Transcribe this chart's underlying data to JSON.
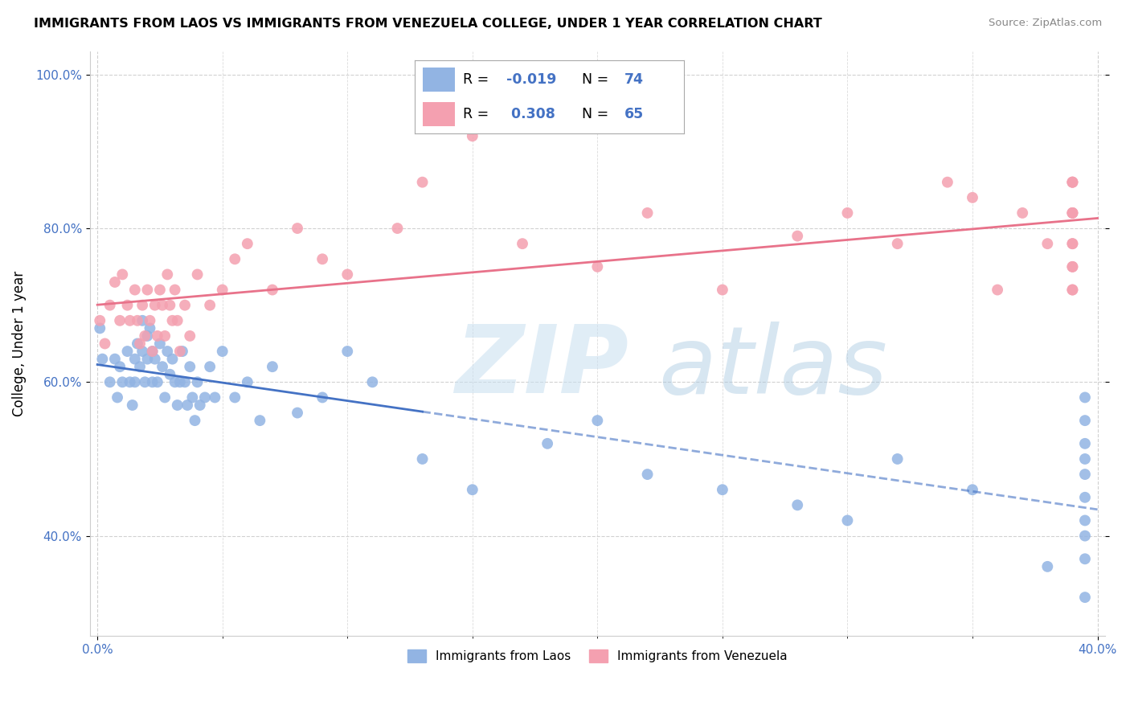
{
  "title": "IMMIGRANTS FROM LAOS VS IMMIGRANTS FROM VENEZUELA COLLEGE, UNDER 1 YEAR CORRELATION CHART",
  "source": "Source: ZipAtlas.com",
  "ylabel": "College, Under 1 year",
  "xlim": [
    -0.003,
    0.403
  ],
  "ylim": [
    0.27,
    1.03
  ],
  "color_laos": "#92b4e3",
  "color_venezuela": "#f4a0b0",
  "color_laos_line": "#4472c4",
  "color_venezuela_line": "#e8728a",
  "R_laos": -0.019,
  "N_laos": 74,
  "R_venezuela": 0.308,
  "N_venezuela": 65,
  "laos_x": [
    0.001,
    0.002,
    0.005,
    0.007,
    0.008,
    0.009,
    0.01,
    0.012,
    0.013,
    0.014,
    0.015,
    0.015,
    0.016,
    0.017,
    0.018,
    0.018,
    0.019,
    0.02,
    0.02,
    0.021,
    0.022,
    0.022,
    0.023,
    0.024,
    0.025,
    0.026,
    0.027,
    0.028,
    0.029,
    0.03,
    0.031,
    0.032,
    0.033,
    0.034,
    0.035,
    0.036,
    0.037,
    0.038,
    0.039,
    0.04,
    0.041,
    0.043,
    0.045,
    0.047,
    0.05,
    0.055,
    0.06,
    0.065,
    0.07,
    0.08,
    0.09,
    0.1,
    0.11,
    0.13,
    0.15,
    0.18,
    0.2,
    0.22,
    0.25,
    0.28,
    0.3,
    0.32,
    0.35,
    0.38,
    0.395,
    0.395,
    0.395,
    0.395,
    0.395,
    0.395,
    0.395,
    0.395,
    0.395,
    0.395
  ],
  "laos_y": [
    0.67,
    0.63,
    0.6,
    0.63,
    0.58,
    0.62,
    0.6,
    0.64,
    0.6,
    0.57,
    0.63,
    0.6,
    0.65,
    0.62,
    0.68,
    0.64,
    0.6,
    0.66,
    0.63,
    0.67,
    0.64,
    0.6,
    0.63,
    0.6,
    0.65,
    0.62,
    0.58,
    0.64,
    0.61,
    0.63,
    0.6,
    0.57,
    0.6,
    0.64,
    0.6,
    0.57,
    0.62,
    0.58,
    0.55,
    0.6,
    0.57,
    0.58,
    0.62,
    0.58,
    0.64,
    0.58,
    0.6,
    0.55,
    0.62,
    0.56,
    0.58,
    0.64,
    0.6,
    0.5,
    0.46,
    0.52,
    0.55,
    0.48,
    0.46,
    0.44,
    0.42,
    0.5,
    0.46,
    0.36,
    0.58,
    0.55,
    0.52,
    0.5,
    0.48,
    0.45,
    0.42,
    0.4,
    0.37,
    0.32
  ],
  "venezuela_x": [
    0.001,
    0.003,
    0.005,
    0.007,
    0.009,
    0.01,
    0.012,
    0.013,
    0.015,
    0.016,
    0.017,
    0.018,
    0.019,
    0.02,
    0.021,
    0.022,
    0.023,
    0.024,
    0.025,
    0.026,
    0.027,
    0.028,
    0.029,
    0.03,
    0.031,
    0.032,
    0.033,
    0.035,
    0.037,
    0.04,
    0.045,
    0.05,
    0.055,
    0.06,
    0.07,
    0.08,
    0.09,
    0.1,
    0.12,
    0.13,
    0.15,
    0.17,
    0.2,
    0.22,
    0.25,
    0.28,
    0.3,
    0.32,
    0.34,
    0.35,
    0.36,
    0.37,
    0.38,
    0.39,
    0.39,
    0.39,
    0.39,
    0.39,
    0.39,
    0.39,
    0.39,
    0.39,
    0.39,
    0.39,
    0.39
  ],
  "venezuela_y": [
    0.68,
    0.65,
    0.7,
    0.73,
    0.68,
    0.74,
    0.7,
    0.68,
    0.72,
    0.68,
    0.65,
    0.7,
    0.66,
    0.72,
    0.68,
    0.64,
    0.7,
    0.66,
    0.72,
    0.7,
    0.66,
    0.74,
    0.7,
    0.68,
    0.72,
    0.68,
    0.64,
    0.7,
    0.66,
    0.74,
    0.7,
    0.72,
    0.76,
    0.78,
    0.72,
    0.8,
    0.76,
    0.74,
    0.8,
    0.86,
    0.92,
    0.78,
    0.75,
    0.82,
    0.72,
    0.79,
    0.82,
    0.78,
    0.86,
    0.84,
    0.72,
    0.82,
    0.78,
    0.86,
    0.82,
    0.72,
    0.75,
    0.78,
    0.86,
    0.82,
    0.72,
    0.75,
    0.78,
    0.82,
    0.86
  ]
}
